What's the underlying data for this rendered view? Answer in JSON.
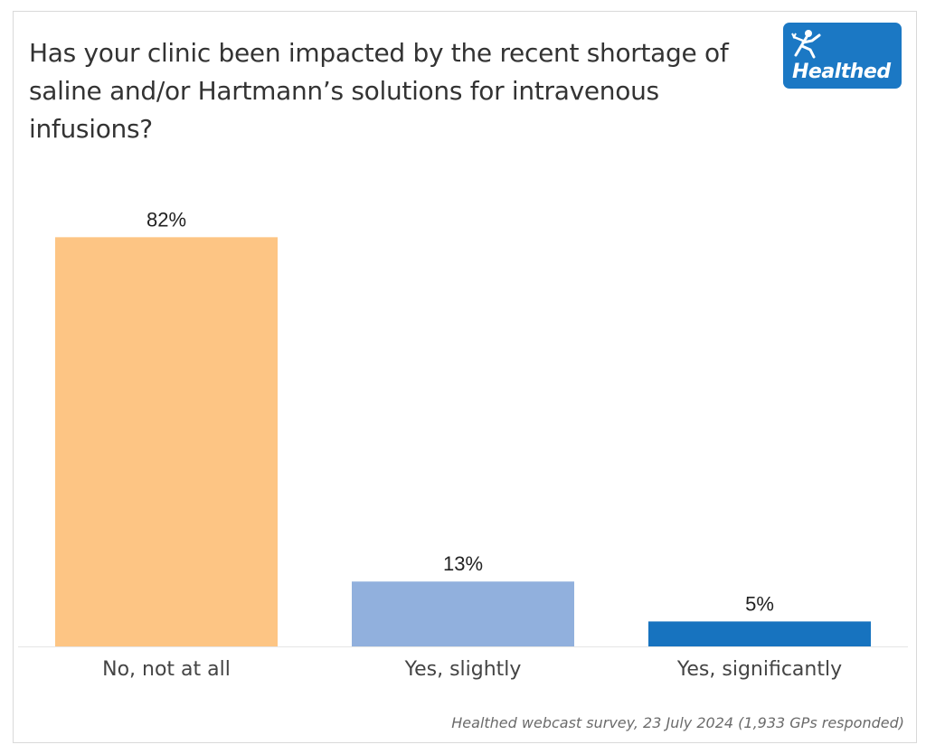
{
  "logo": {
    "text": "Healthed"
  },
  "chart_data": {
    "type": "bar",
    "title": "Has your clinic been impacted by the recent shortage of saline and/or Hartmann’s solutions for intravenous infusions?",
    "categories": [
      "No, not at all",
      "Yes, slightly",
      "Yes, significantly"
    ],
    "values": [
      82,
      13,
      5
    ],
    "data_labels": [
      "82%",
      "13%",
      "5%"
    ],
    "colors": [
      "#fdc584",
      "#91b0dd",
      "#1773bf"
    ],
    "ylim": [
      0,
      100
    ],
    "grid": false,
    "xlabel": "",
    "ylabel": ""
  },
  "source": "Healthed webcast survey, 23 July 2024 (1,933 GPs responded)"
}
